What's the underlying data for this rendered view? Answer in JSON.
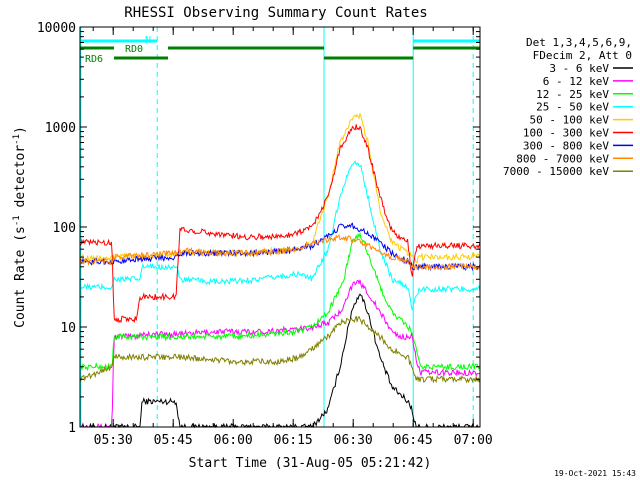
{
  "chart_data": {
    "type": "line",
    "title": "RHESSI Observing Summary Count Rates",
    "xlabel": "Start Time (31-Aug-05 05:21:42)",
    "ylabel": "Count Rate (s⁻¹ detector⁻¹)",
    "ylabel_main": "Count Rate (s",
    "ylabel_mid": " detector",
    "ylabel_end": ")",
    "ylabel_sup": "-1",
    "yscale": "log",
    "ylim": [
      1,
      10000
    ],
    "xlim_minutes": [
      0,
      100
    ],
    "x_ticks": [
      {
        "label": "05:30",
        "minute": 8.3
      },
      {
        "label": "05:45",
        "minute": 23.3
      },
      {
        "label": "06:00",
        "minute": 38.3
      },
      {
        "label": "06:15",
        "minute": 53.3
      },
      {
        "label": "06:30",
        "minute": 68.3
      },
      {
        "label": "06:45",
        "minute": 83.3
      },
      {
        "label": "07:00",
        "minute": 98.3
      }
    ],
    "y_ticks": [
      {
        "label": "1",
        "value": 1
      },
      {
        "label": "10",
        "value": 10
      },
      {
        "label": "100",
        "value": 100
      },
      {
        "label": "1000",
        "value": 1000
      },
      {
        "label": "10000",
        "value": 10000
      }
    ],
    "legend_header": [
      "Det 1,3,4,5,6,9,",
      "FDecim 2, Att 0"
    ],
    "legend_position": "right",
    "grid": false,
    "background": "#ffffff",
    "series": [
      {
        "name": "3 - 6 keV",
        "color": "#000000",
        "x": [
          0,
          15,
          15.5,
          24,
          25,
          40,
          50,
          58,
          62,
          65,
          68,
          70,
          72,
          75,
          78,
          82,
          83,
          84,
          85,
          100
        ],
        "y": [
          1,
          1,
          1.8,
          1.8,
          1,
          1,
          1,
          1,
          1.5,
          4,
          15,
          22,
          14,
          5,
          2.5,
          1.8,
          1.5,
          1,
          1,
          1
        ]
      },
      {
        "name": "6 - 12 keV",
        "color": "#ff00ff",
        "x": [
          0,
          8,
          8.5,
          14,
          15,
          24,
          25,
          35,
          45,
          55,
          58,
          62,
          65,
          68,
          70,
          72,
          75,
          78,
          80,
          83,
          84,
          85,
          100
        ],
        "y": [
          1,
          1,
          8,
          8,
          8.5,
          8.5,
          8.5,
          9,
          9,
          9.5,
          10,
          11,
          14,
          26,
          28,
          22,
          14,
          9,
          8,
          8,
          5,
          3.5,
          3.5
        ]
      },
      {
        "name": "12 - 25 keV",
        "color": "#00ff00",
        "x": [
          0,
          0.5,
          8,
          8.5,
          15,
          24,
          25,
          40,
          55,
          58,
          62,
          66,
          68,
          70,
          72,
          75,
          78,
          82,
          83,
          84,
          85,
          100
        ],
        "y": [
          4,
          4,
          4,
          8,
          8,
          8,
          8,
          8,
          9,
          10,
          14,
          30,
          70,
          85,
          55,
          25,
          14,
          10,
          9,
          6,
          4,
          4
        ]
      },
      {
        "name": "25 - 50 keV",
        "color": "#00ffff",
        "x": [
          0,
          0.2,
          8,
          8.5,
          15,
          15.5,
          24,
          25,
          35,
          45,
          55,
          58,
          62,
          65,
          68,
          70,
          72,
          75,
          78,
          82,
          83,
          84,
          85,
          100
        ],
        "y": [
          1,
          25,
          25,
          30,
          30,
          40,
          40,
          30,
          28,
          30,
          34,
          30,
          60,
          200,
          450,
          420,
          200,
          60,
          30,
          25,
          15,
          20,
          24,
          24
        ]
      },
      {
        "name": "50 - 100 keV",
        "color": "#ffcc00",
        "x": [
          0,
          8,
          8.5,
          24,
          25,
          40,
          55,
          58,
          62,
          65,
          68,
          70,
          72,
          75,
          78,
          82,
          83,
          84,
          85,
          100
        ],
        "y": [
          50,
          48,
          50,
          52,
          55,
          55,
          60,
          70,
          200,
          700,
          1200,
          1300,
          700,
          150,
          70,
          55,
          50,
          45,
          50,
          50
        ]
      },
      {
        "name": "100 - 300 keV",
        "color": "#ff0000",
        "x": [
          0,
          8,
          8.5,
          14,
          15,
          24,
          25,
          30,
          40,
          50,
          55,
          58,
          62,
          65,
          68,
          70,
          72,
          75,
          78,
          82,
          83,
          84,
          85,
          100
        ],
        "y": [
          70,
          70,
          12,
          12,
          20,
          20,
          95,
          90,
          80,
          80,
          90,
          100,
          200,
          600,
          1000,
          1000,
          600,
          200,
          90,
          70,
          30,
          60,
          65,
          65
        ]
      },
      {
        "name": "300 - 800 keV",
        "color": "#0000ff",
        "x": [
          0,
          8,
          8.5,
          15,
          24,
          25,
          35,
          45,
          55,
          58,
          62,
          65,
          68,
          70,
          72,
          75,
          78,
          82,
          83,
          84,
          85,
          100
        ],
        "y": [
          45,
          45,
          45,
          48,
          50,
          55,
          55,
          55,
          60,
          65,
          80,
          100,
          105,
          95,
          85,
          70,
          55,
          45,
          40,
          40,
          40,
          40
        ]
      },
      {
        "name": "800 - 7000 keV",
        "color": "#ff8800",
        "x": [
          0,
          8,
          8.5,
          15,
          24,
          25,
          35,
          45,
          55,
          58,
          62,
          65,
          68,
          70,
          72,
          75,
          78,
          82,
          83,
          84,
          85,
          100
        ],
        "y": [
          45,
          45,
          50,
          52,
          55,
          58,
          55,
          55,
          60,
          70,
          75,
          80,
          75,
          70,
          65,
          55,
          50,
          45,
          40,
          40,
          40,
          40
        ]
      },
      {
        "name": "7000 - 15000 keV",
        "color": "#808000",
        "x": [
          0,
          8,
          8.5,
          15,
          24,
          25,
          40,
          50,
          55,
          58,
          62,
          65,
          68,
          70,
          72,
          75,
          78,
          82,
          83,
          84,
          85,
          100
        ],
        "y": [
          3,
          4,
          5,
          5,
          5,
          5,
          4.5,
          4.5,
          5,
          6,
          8,
          11,
          12,
          12,
          10,
          8,
          6,
          5,
          4,
          3,
          3,
          3
        ]
      }
    ],
    "annotations": {
      "N": "N",
      "RD0": "RD0",
      "RD6": "RD6",
      "timestamp": "19-Oct-2021 15:43"
    },
    "state_bars": [
      {
        "label": "N",
        "color": "#00ffff",
        "segments": [
          [
            0,
            19.3
          ],
          [
            83.3,
            100
          ]
        ]
      },
      {
        "label": "RD0",
        "color": "#008000",
        "segments": [
          [
            0,
            8.5
          ],
          [
            22,
            61
          ],
          [
            83.3,
            100
          ]
        ]
      },
      {
        "label": "RD6",
        "color": "#008000",
        "segments": [
          [
            8.5,
            22
          ],
          [
            61,
            83.3
          ]
        ]
      }
    ],
    "vertical_markers": [
      {
        "minute": 0.2,
        "color": "#00ffff",
        "style": "solid"
      },
      {
        "minute": 19.3,
        "color": "#00ffff",
        "style": "dashed"
      },
      {
        "minute": 61,
        "color": "#00ffff",
        "style": "solid"
      },
      {
        "minute": 83.3,
        "color": "#00ffff",
        "style": "solid"
      },
      {
        "minute": 98.3,
        "color": "#00ffff",
        "style": "dashed"
      }
    ]
  }
}
